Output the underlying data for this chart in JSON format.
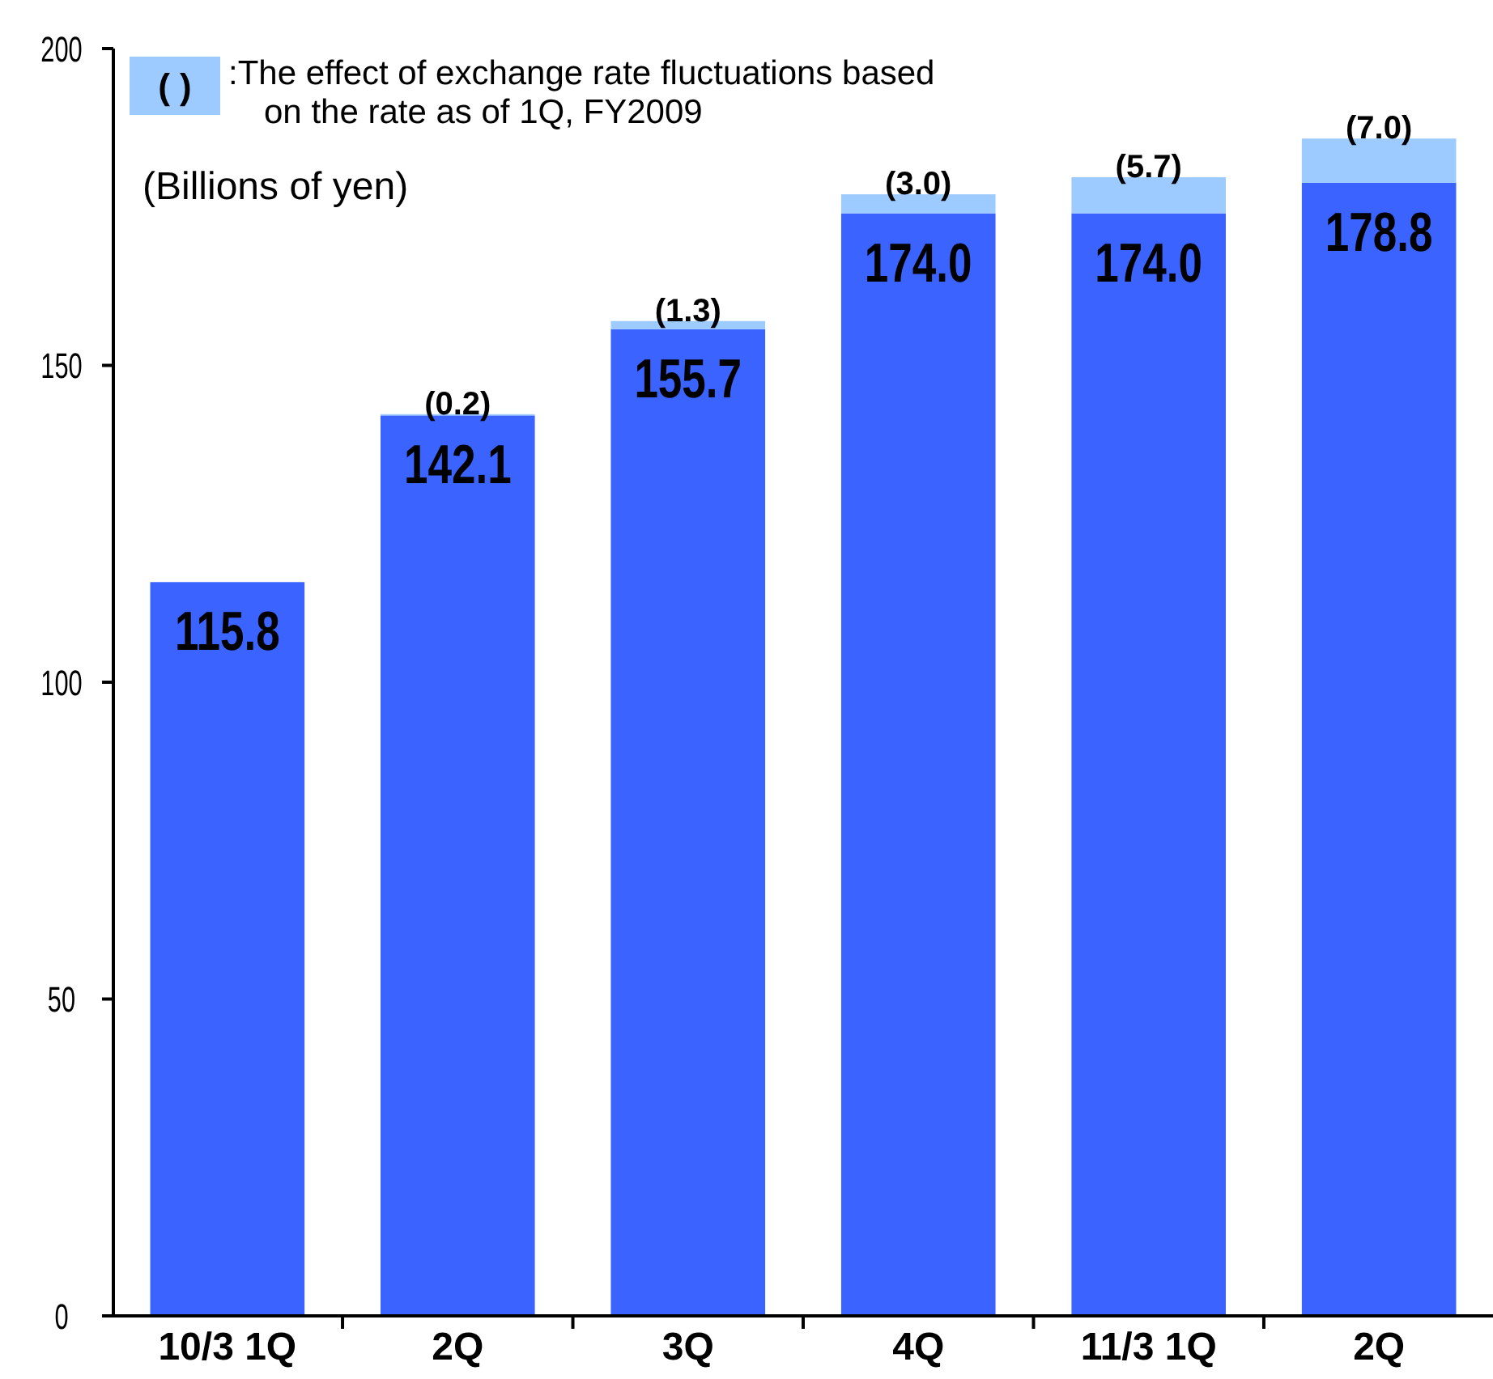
{
  "chart_data": {
    "type": "bar",
    "stacked": true,
    "ylabel": "(Billions of yen)",
    "categories": [
      "10/3 1Q",
      "2Q",
      "3Q",
      "4Q",
      "11/3 1Q",
      "2Q"
    ],
    "series": [
      {
        "color": "#3a63ff",
        "values": [
          115.8,
          142.1,
          155.7,
          174.0,
          174.0,
          178.8
        ],
        "value_labels": [
          "115.8",
          "142.1",
          "155.7",
          "174.0",
          "174.0",
          "178.8"
        ]
      },
      {
        "name": ":The effect of exchange rate fluctuations based\non the rate as of 1Q, FY2009",
        "color": "#9dcbff",
        "values": [
          null,
          0.2,
          1.3,
          3.0,
          5.7,
          7.0
        ],
        "value_labels": [
          null,
          "(0.2)",
          "(1.3)",
          "(3.0)",
          "(5.7)",
          "(7.0)"
        ]
      }
    ],
    "annotations": [
      "( )"
    ],
    "ylim": [
      0,
      200
    ],
    "yticks": [
      0,
      50,
      100,
      150,
      200
    ],
    "grid": false,
    "legend": "top left"
  }
}
